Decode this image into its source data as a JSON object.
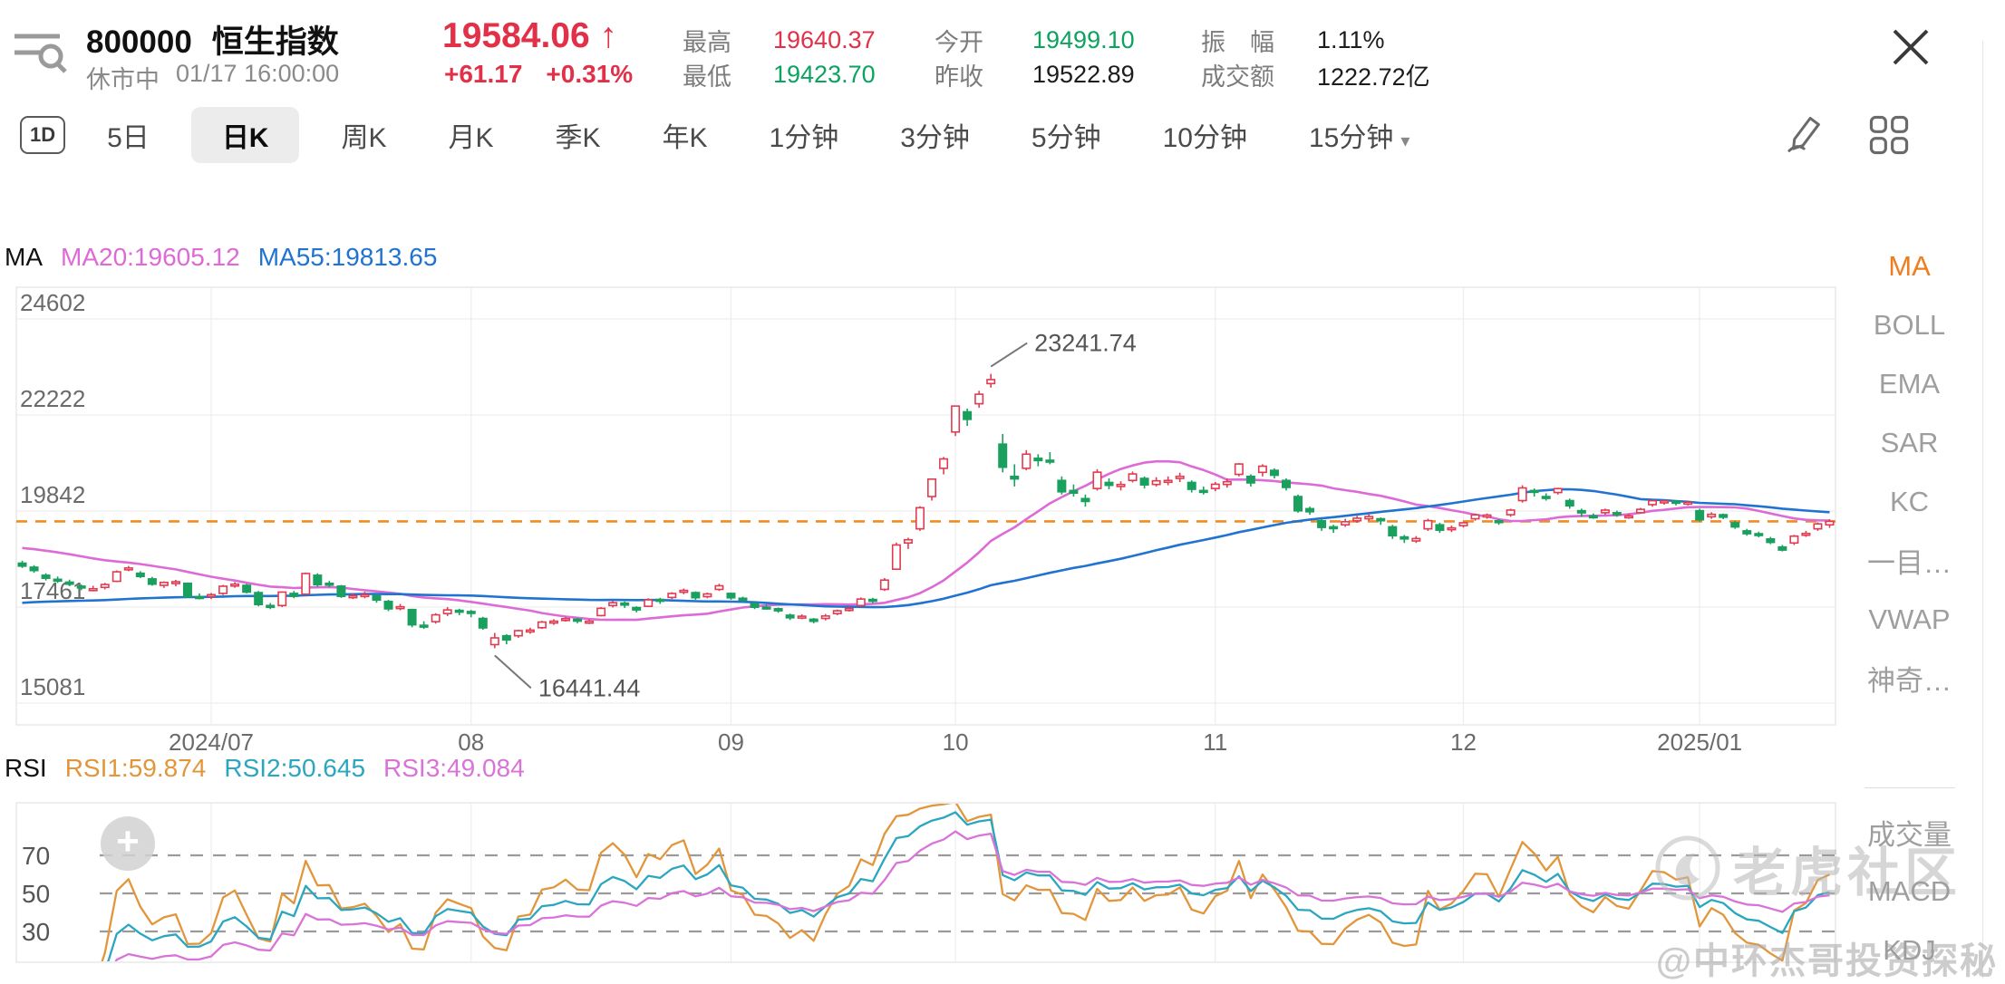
{
  "header": {
    "symbol": "800000",
    "name": "恒生指数",
    "price": "19584.06",
    "arrow": "↑",
    "change": "+61.17",
    "change_pct": "+0.31%",
    "market_status": "休市中",
    "timestamp": "01/17 16:00:00",
    "stats": [
      {
        "label": "最高",
        "value": "19640.37",
        "color_key": "price_red"
      },
      {
        "label": "今开",
        "value": "19499.10",
        "color_key": "price_green"
      },
      {
        "label": "振　幅",
        "value": "1.11%",
        "color_key": "text_dark"
      },
      {
        "label": "最低",
        "value": "19423.70",
        "color_key": "price_green"
      },
      {
        "label": "昨收",
        "value": "19522.89",
        "color_key": "text_dark"
      },
      {
        "label": "成交额",
        "value": "1222.72亿",
        "color_key": "text_dark"
      }
    ]
  },
  "tabs": {
    "items": [
      {
        "label": "1D",
        "boxed": true
      },
      {
        "label": "5日"
      },
      {
        "label": "日K",
        "active": true
      },
      {
        "label": "周K"
      },
      {
        "label": "月K"
      },
      {
        "label": "季K"
      },
      {
        "label": "年K"
      },
      {
        "label": "1分钟"
      },
      {
        "label": "3分钟"
      },
      {
        "label": "5分钟"
      },
      {
        "label": "10分钟"
      },
      {
        "label": "15分钟",
        "caret": true
      }
    ]
  },
  "ma_legend": {
    "title": "MA",
    "items": [
      {
        "text": "MA20:19605.12",
        "color_key": "ma20"
      },
      {
        "text": "MA55:19813.65",
        "color_key": "ma55"
      }
    ]
  },
  "rsi_legend": {
    "title": "RSI",
    "items": [
      {
        "text": "RSI1:59.874",
        "color_key": "rsi1"
      },
      {
        "text": "RSI2:50.645",
        "color_key": "rsi2"
      },
      {
        "text": "RSI3:49.084",
        "color_key": "rsi3"
      }
    ]
  },
  "sidebar": {
    "items": [
      {
        "label": "MA",
        "active": true
      },
      {
        "label": "BOLL"
      },
      {
        "label": "EMA"
      },
      {
        "label": "SAR"
      },
      {
        "label": "KC"
      },
      {
        "label": "一目…"
      },
      {
        "label": "VWAP"
      },
      {
        "label": "神奇…"
      },
      {
        "divider": true
      },
      {
        "label": "成交量"
      },
      {
        "label": "MACD"
      },
      {
        "label": "KDJ"
      }
    ]
  },
  "watermark": {
    "brand": "老虎社区",
    "handle": "@中环杰哥投资探秘",
    "plus": "+"
  },
  "colors": {
    "up": "#e23b50",
    "down": "#1aa05e",
    "price_red": "#e23048",
    "price_green": "#0ca25f",
    "text_dark": "#1c1c1c",
    "ma20": "#dd6ad6",
    "ma55": "#2173d1",
    "rsi1": "#e2963b",
    "rsi2": "#2aa6c0",
    "rsi3": "#d973d9",
    "price_line": "#f18b22",
    "grid": "#ededed",
    "border": "#e2e2e2",
    "accent_active": "#ee7d1f"
  },
  "chart_data": {
    "type": "candlestick",
    "title": "恒生指数 日K",
    "last_price": 19584.06,
    "y_ticks": [
      24602,
      22222,
      19842,
      17461,
      15081
    ],
    "rsi_ticks": [
      70,
      50,
      30
    ],
    "months": [
      {
        "index": 16,
        "label": "2024/07"
      },
      {
        "index": 38,
        "label": "08"
      },
      {
        "index": 60,
        "label": "09"
      },
      {
        "index": 79,
        "label": "10"
      },
      {
        "index": 101,
        "label": "11"
      },
      {
        "index": 122,
        "label": "12"
      },
      {
        "index": 142,
        "label": "2025/01"
      }
    ],
    "ma": [
      {
        "period": 20,
        "seed": 18950,
        "color_key": "ma20"
      },
      {
        "period": 55,
        "seed": 17550,
        "color_key": "ma55"
      }
    ],
    "rsi": [
      {
        "period": 6,
        "color_key": "rsi1"
      },
      {
        "period": 12,
        "color_key": "rsi2"
      },
      {
        "period": 24,
        "color_key": "rsi3"
      }
    ],
    "annotations": [
      {
        "index": 82,
        "value": 23241.74,
        "label": "23241.74",
        "side": "above"
      },
      {
        "index": 40,
        "value": 16441.44,
        "label": "16441.44",
        "side": "below"
      }
    ],
    "candles": [
      [
        18550,
        18610,
        18430,
        18476
      ],
      [
        18450,
        18500,
        18310,
        18366
      ],
      [
        18250,
        18300,
        18120,
        18176
      ],
      [
        18150,
        18220,
        18060,
        18112
      ],
      [
        18080,
        18140,
        17990,
        18028
      ],
      [
        17980,
        18020,
        17880,
        17936
      ],
      [
        17900,
        17990,
        17850,
        17915
      ],
      [
        17950,
        18060,
        17900,
        18020
      ],
      [
        18100,
        18370,
        18080,
        18335
      ],
      [
        18400,
        18480,
        18350,
        18430
      ],
      [
        18300,
        18350,
        18180,
        18220
      ],
      [
        18160,
        18210,
        17990,
        18028
      ],
      [
        18000,
        18098,
        17936,
        18072
      ],
      [
        18080,
        18136,
        17976,
        18089
      ],
      [
        18050,
        18070,
        17703,
        17716
      ],
      [
        17720,
        17800,
        17650,
        17718
      ],
      [
        17730,
        17810,
        17660,
        17769
      ],
      [
        17800,
        18010,
        17760,
        17978
      ],
      [
        17990,
        18080,
        17940,
        18028
      ],
      [
        18000,
        18035,
        17800,
        17832
      ],
      [
        17820,
        17860,
        17480,
        17524
      ],
      [
        17500,
        17560,
        17410,
        17471
      ],
      [
        17500,
        17850,
        17460,
        17832
      ],
      [
        17800,
        17860,
        17680,
        17727
      ],
      [
        17780,
        18320,
        17770,
        18293
      ],
      [
        18250,
        18300,
        17960,
        18015
      ],
      [
        18050,
        18110,
        17950,
        18020
      ],
      [
        17980,
        18010,
        17690,
        17727
      ],
      [
        17720,
        17810,
        17660,
        17739
      ],
      [
        17750,
        17840,
        17680,
        17769
      ],
      [
        17740,
        17780,
        17570,
        17635
      ],
      [
        17600,
        17640,
        17360,
        17417
      ],
      [
        17430,
        17540,
        17380,
        17469
      ],
      [
        17400,
        17420,
        16960,
        17021
      ],
      [
        17010,
        17110,
        16920,
        17004
      ],
      [
        17100,
        17310,
        17050,
        17269
      ],
      [
        17300,
        17460,
        17240,
        17391
      ],
      [
        17380,
        17420,
        17260,
        17345
      ],
      [
        17350,
        17390,
        17210,
        17305
      ],
      [
        17180,
        17220,
        16900,
        16945
      ],
      [
        16530,
        16820,
        16441.44,
        16698
      ],
      [
        16750,
        16790,
        16540,
        16647
      ],
      [
        16750,
        16900,
        16700,
        16877
      ],
      [
        16850,
        16950,
        16800,
        16891
      ],
      [
        16950,
        17120,
        16920,
        17090
      ],
      [
        17100,
        17160,
        17020,
        17111
      ],
      [
        17150,
        17220,
        17100,
        17174
      ],
      [
        17160,
        17190,
        17060,
        17113
      ],
      [
        17100,
        17160,
        17040,
        17109
      ],
      [
        17250,
        17460,
        17230,
        17430
      ],
      [
        17500,
        17610,
        17450,
        17569
      ],
      [
        17560,
        17600,
        17440,
        17511
      ],
      [
        17450,
        17480,
        17330,
        17391
      ],
      [
        17480,
        17680,
        17460,
        17641
      ],
      [
        17650,
        17690,
        17540,
        17612
      ],
      [
        17700,
        17830,
        17660,
        17798
      ],
      [
        17850,
        17920,
        17780,
        17874
      ],
      [
        17820,
        17850,
        17640,
        17692
      ],
      [
        17720,
        17820,
        17680,
        17786
      ],
      [
        17900,
        18040,
        17860,
        17989
      ],
      [
        17800,
        17820,
        17640,
        17691
      ],
      [
        17680,
        17720,
        17580,
        17651
      ],
      [
        17550,
        17580,
        17410,
        17457
      ],
      [
        17460,
        17520,
        17400,
        17444
      ],
      [
        17420,
        17450,
        17320,
        17369
      ],
      [
        17260,
        17300,
        17140,
        17196
      ],
      [
        17210,
        17280,
        17160,
        17234
      ],
      [
        17160,
        17190,
        17060,
        17108
      ],
      [
        17180,
        17290,
        17130,
        17240
      ],
      [
        17300,
        17400,
        17260,
        17369
      ],
      [
        17400,
        17480,
        17350,
        17422
      ],
      [
        17500,
        17700,
        17470,
        17660
      ],
      [
        17650,
        17690,
        17560,
        17630
      ],
      [
        17900,
        18180,
        17860,
        18130
      ],
      [
        18400,
        19060,
        18380,
        19000
      ],
      [
        19050,
        19180,
        18900,
        19129
      ],
      [
        19400,
        19960,
        19350,
        19924
      ],
      [
        20200,
        20650,
        20100,
        20632
      ],
      [
        20900,
        21180,
        20750,
        21133
      ],
      [
        21800,
        22450,
        21700,
        22443
      ],
      [
        22300,
        22380,
        21950,
        22113
      ],
      [
        22500,
        22820,
        22400,
        22736
      ],
      [
        23000,
        23241.74,
        22900,
        23099
      ],
      [
        21500,
        21750,
        20800,
        20926
      ],
      [
        20700,
        21000,
        20450,
        20637
      ],
      [
        20900,
        21350,
        20850,
        21251
      ],
      [
        21150,
        21250,
        20950,
        21092
      ],
      [
        21100,
        21300,
        21000,
        21096
      ],
      [
        20600,
        20700,
        20250,
        20318
      ],
      [
        20350,
        20500,
        20200,
        20286
      ],
      [
        20150,
        20250,
        19950,
        20079
      ],
      [
        20400,
        20880,
        20350,
        20804
      ],
      [
        20550,
        20650,
        20380,
        20478
      ],
      [
        20450,
        20580,
        20350,
        20499
      ],
      [
        20600,
        20820,
        20550,
        20760
      ],
      [
        20650,
        20700,
        20400,
        20489
      ],
      [
        20500,
        20680,
        20450,
        20590
      ],
      [
        20560,
        20700,
        20480,
        20599
      ],
      [
        20650,
        20790,
        20560,
        20701
      ],
      [
        20550,
        20600,
        20300,
        20380
      ],
      [
        20350,
        20450,
        20250,
        20317
      ],
      [
        20400,
        20560,
        20330,
        20506
      ],
      [
        20500,
        20650,
        20420,
        20567
      ],
      [
        20750,
        21030,
        20700,
        21007
      ],
      [
        20700,
        20750,
        20450,
        20538
      ],
      [
        20800,
        21000,
        20700,
        20953
      ],
      [
        20850,
        20900,
        20650,
        20728
      ],
      [
        20600,
        20650,
        20350,
        20426
      ],
      [
        20200,
        20250,
        19800,
        19846
      ],
      [
        19900,
        19950,
        19750,
        19823
      ],
      [
        19600,
        19650,
        19350,
        19435
      ],
      [
        19450,
        19500,
        19300,
        19426
      ],
      [
        19500,
        19650,
        19450,
        19576
      ],
      [
        19600,
        19720,
        19550,
        19663
      ],
      [
        19650,
        19760,
        19600,
        19705
      ],
      [
        19650,
        19680,
        19500,
        19601
      ],
      [
        19450,
        19500,
        19150,
        19229
      ],
      [
        19200,
        19250,
        19050,
        19150
      ],
      [
        19100,
        19220,
        19050,
        19159
      ],
      [
        19400,
        19650,
        19350,
        19603
      ],
      [
        19500,
        19550,
        19300,
        19366
      ],
      [
        19380,
        19480,
        19320,
        19424
      ],
      [
        19480,
        19580,
        19430,
        19550
      ],
      [
        19650,
        19780,
        19600,
        19746
      ],
      [
        19720,
        19780,
        19650,
        19742
      ],
      [
        19600,
        19640,
        19500,
        19560
      ],
      [
        19750,
        19900,
        19700,
        19865
      ],
      [
        20100,
        20480,
        20050,
        20414
      ],
      [
        20350,
        20400,
        20200,
        20311
      ],
      [
        20200,
        20280,
        20100,
        20155
      ],
      [
        20300,
        20420,
        20250,
        20397
      ],
      [
        20100,
        20150,
        19900,
        19971
      ],
      [
        19850,
        19900,
        19700,
        19795
      ],
      [
        19720,
        19780,
        19650,
        19700
      ],
      [
        19800,
        19900,
        19750,
        19864
      ],
      [
        19800,
        19850,
        19700,
        19752
      ],
      [
        19700,
        19780,
        19650,
        19720
      ],
      [
        19800,
        19920,
        19780,
        19883
      ],
      [
        20000,
        20110,
        19950,
        20098
      ],
      [
        20050,
        20120,
        20000,
        20090
      ],
      [
        20080,
        20110,
        19980,
        20041
      ],
      [
        20030,
        20090,
        19980,
        20060
      ],
      [
        19850,
        19900,
        19580,
        19623
      ],
      [
        19700,
        19810,
        19650,
        19760
      ],
      [
        19750,
        19780,
        19640,
        19688
      ],
      [
        19550,
        19600,
        19400,
        19447
      ],
      [
        19350,
        19400,
        19230,
        19279
      ],
      [
        19280,
        19330,
        19190,
        19240
      ],
      [
        19150,
        19200,
        19020,
        19064
      ],
      [
        18950,
        19000,
        18840,
        18874
      ],
      [
        19050,
        19250,
        19000,
        19219
      ],
      [
        19250,
        19350,
        19200,
        19286
      ],
      [
        19400,
        19560,
        19350,
        19522.89
      ],
      [
        19499.1,
        19640.37,
        19423.7,
        19584.06
      ]
    ]
  }
}
